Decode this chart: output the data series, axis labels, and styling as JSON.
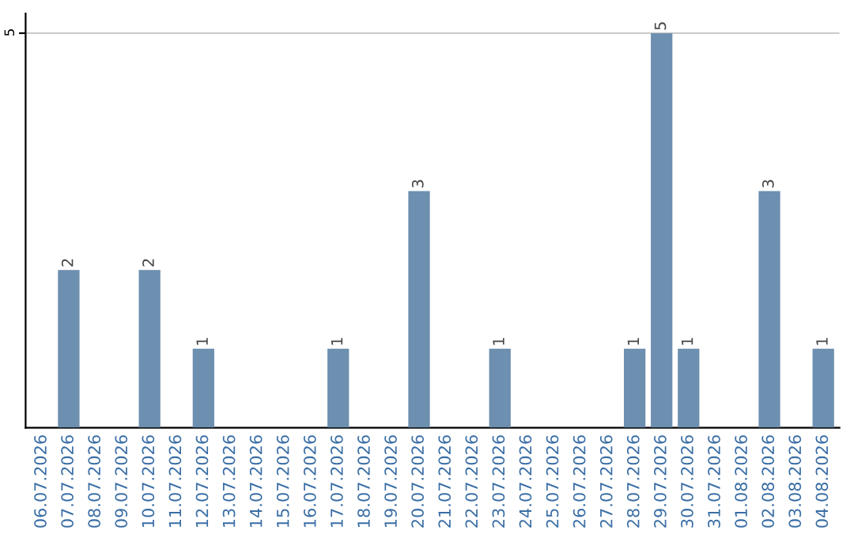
{
  "chart_data": {
    "type": "bar",
    "categories": [
      "06.07.2026",
      "07.07.2026",
      "08.07.2026",
      "09.07.2026",
      "10.07.2026",
      "11.07.2026",
      "12.07.2026",
      "13.07.2026",
      "14.07.2026",
      "15.07.2026",
      "16.07.2026",
      "17.07.2026",
      "18.07.2026",
      "19.07.2026",
      "20.07.2026",
      "21.07.2026",
      "22.07.2026",
      "23.07.2026",
      "24.07.2026",
      "25.07.2026",
      "26.07.2026",
      "27.07.2026",
      "28.07.2026",
      "29.07.2026",
      "30.07.2026",
      "31.07.2026",
      "01.08.2026",
      "02.08.2026",
      "03.08.2026",
      "04.08.2026"
    ],
    "values": [
      null,
      2,
      null,
      null,
      2,
      null,
      1,
      null,
      null,
      null,
      null,
      1,
      null,
      null,
      3,
      null,
      null,
      1,
      null,
      null,
      null,
      null,
      1,
      5,
      1,
      null,
      null,
      3,
      null,
      1
    ],
    "color": "#6d8fb0",
    "ylim": [
      0,
      5.25
    ],
    "yticks": [
      5
    ],
    "grid": "y",
    "data_labels": true
  }
}
